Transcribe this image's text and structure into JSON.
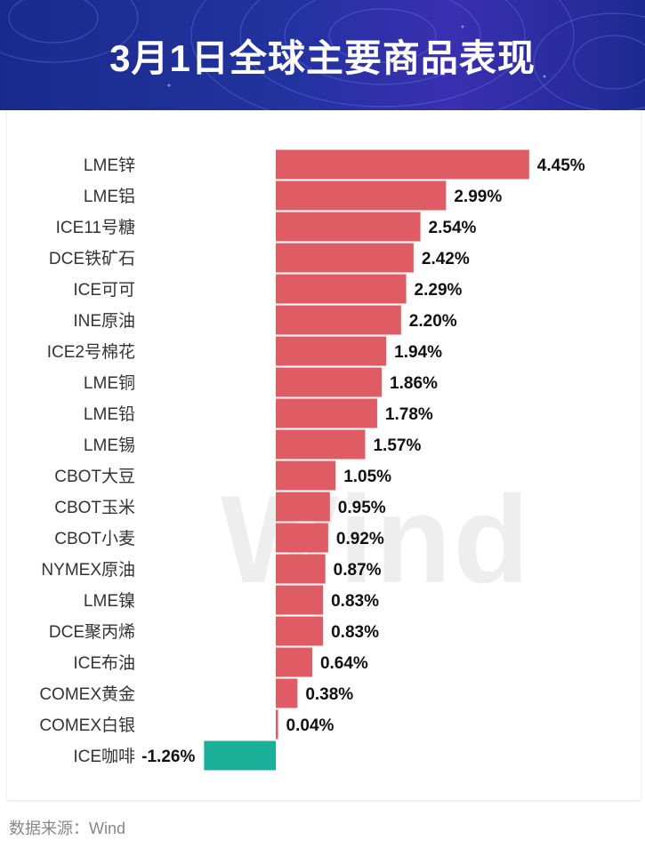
{
  "header": {
    "title": "3月1日全球主要商品表现"
  },
  "watermark_text": "Wind",
  "source_text": "数据来源：Wind",
  "colors": {
    "positive": "#e05c64",
    "negative": "#1aaf99",
    "banner": "#1f2d98"
  },
  "chart_data": {
    "type": "bar",
    "orientation": "horizontal",
    "title": "",
    "xlabel": "",
    "ylabel": "",
    "unit": "%",
    "categories": [
      "LME锌",
      "LME铝",
      "ICE11号糖",
      "DCE铁矿石",
      "ICE可可",
      "INE原油",
      "ICE2号棉花",
      "LME铜",
      "LME铅",
      "LME锡",
      "CBOT大豆",
      "CBOT玉米",
      "CBOT小麦",
      "NYMEX原油",
      "LME镍",
      "DCE聚丙烯",
      "ICE布油",
      "COMEX黄金",
      "COMEX白银",
      "ICE咖啡"
    ],
    "values": [
      4.45,
      2.99,
      2.54,
      2.42,
      2.29,
      2.2,
      1.94,
      1.86,
      1.78,
      1.57,
      1.05,
      0.95,
      0.92,
      0.87,
      0.83,
      0.83,
      0.64,
      0.38,
      0.04,
      -1.26
    ],
    "labels": [
      "4.45%",
      "2.99%",
      "2.54%",
      "2.42%",
      "2.29%",
      "2.20%",
      "1.94%",
      "1.86%",
      "1.78%",
      "1.57%",
      "1.05%",
      "0.95%",
      "0.92%",
      "0.87%",
      "0.83%",
      "0.83%",
      "0.64%",
      "0.38%",
      "0.04%",
      "-1.26%"
    ],
    "grid": false,
    "legend": "none"
  }
}
